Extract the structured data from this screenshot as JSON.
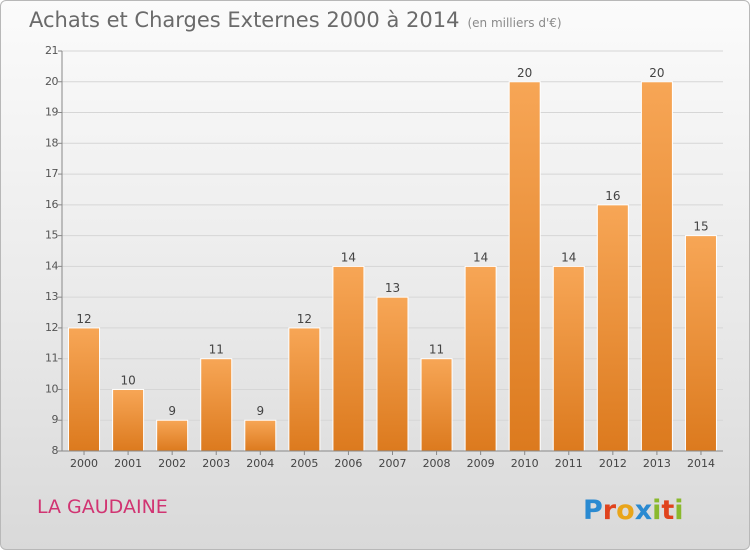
{
  "title": "Achats et Charges Externes 2000 à 2014",
  "subtitle": "(en milliers d'€)",
  "city": "LA GAUDAINE",
  "logo_text": "Proxiti",
  "colors": {
    "bar_top": "#f7a656",
    "bar_bottom": "#dc7a1e",
    "accent": "#d13472"
  },
  "chart_data": {
    "type": "bar",
    "title": "Achats et Charges Externes 2000 à 2014",
    "subtitle": "(en milliers d'€)",
    "xlabel": "",
    "ylabel": "",
    "ylim": [
      8,
      21
    ],
    "yticks": [
      8,
      9,
      10,
      11,
      12,
      13,
      14,
      15,
      16,
      17,
      18,
      19,
      20,
      21
    ],
    "grid": true,
    "categories": [
      "2000",
      "2001",
      "2002",
      "2003",
      "2004",
      "2005",
      "2006",
      "2007",
      "2008",
      "2009",
      "2010",
      "2011",
      "2012",
      "2013",
      "2014"
    ],
    "values": [
      12,
      10,
      9,
      11,
      9,
      12,
      14,
      13,
      11,
      14,
      20,
      14,
      16,
      20,
      15
    ]
  }
}
